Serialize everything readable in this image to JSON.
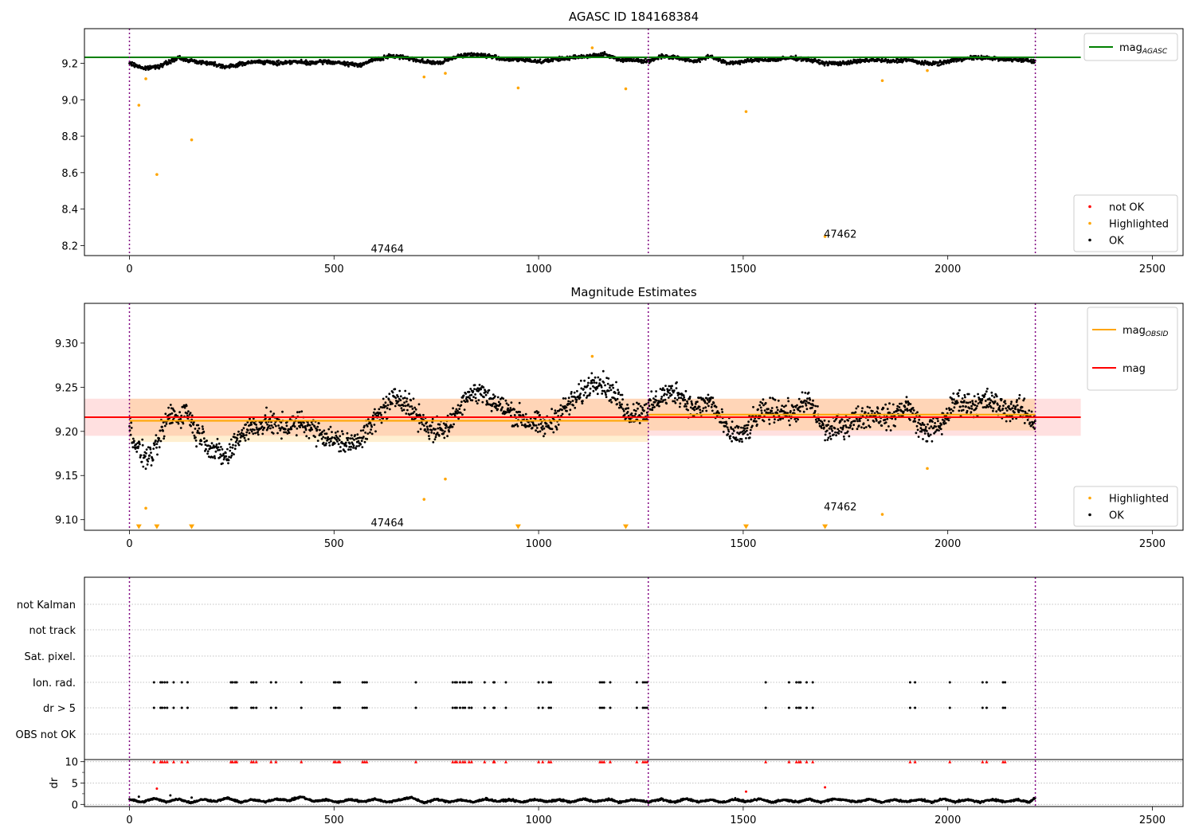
{
  "chart_data": [
    {
      "type": "scatter",
      "title": "AGASC ID 184168384",
      "xlim": [
        -110,
        2575
      ],
      "ylim": [
        8.145,
        9.39
      ],
      "xticks": [
        0,
        500,
        1000,
        1500,
        2000,
        2500
      ],
      "yticks": [
        8.2,
        8.4,
        8.6,
        8.8,
        9.0,
        9.2
      ],
      "ytick_labels": [
        "8.2",
        "8.4",
        "8.6",
        "8.8",
        "9.0",
        "9.2"
      ],
      "hlines": [
        {
          "name": "mag",
          "subscript": "AGASC",
          "y": 9.233,
          "x": [
            -110,
            2325
          ],
          "color": "#008000"
        }
      ],
      "vlines": [
        0,
        1268,
        2214
      ],
      "annotations": [
        {
          "text": "47464",
          "x": 590,
          "y": 8.185
        },
        {
          "text": "47462",
          "x": 1697,
          "y": 8.265
        }
      ],
      "legend_top": {
        "placement": "top-right",
        "entries": [
          {
            "name": "mag",
            "subscript": "AGASC",
            "color": "#008000",
            "kind": "line"
          }
        ]
      },
      "legend_bottom": {
        "placement": "bottom-right",
        "entries": [
          {
            "name": "not OK",
            "color": "#ff0000",
            "kind": "marker"
          },
          {
            "name": "Highlighted",
            "color": "#ffa500",
            "kind": "marker"
          },
          {
            "name": "OK",
            "color": "#000000",
            "kind": "marker"
          }
        ]
      },
      "series": [
        {
          "name": "OK",
          "color": "#000000",
          "kind": "trace",
          "x": [
            0,
            40,
            80,
            120,
            160,
            200,
            240,
            280,
            320,
            360,
            400,
            440,
            480,
            520,
            560,
            600,
            640,
            680,
            720,
            760,
            800,
            840,
            880,
            920,
            960,
            1000,
            1040,
            1080,
            1120,
            1160,
            1200,
            1240,
            1268,
            1300,
            1340,
            1380,
            1420,
            1460,
            1500,
            1540,
            1580,
            1620,
            1660,
            1700,
            1740,
            1780,
            1820,
            1860,
            1900,
            1940,
            1980,
            2020,
            2060,
            2100,
            2140,
            2180,
            2214
          ],
          "y": [
            9.2,
            9.17,
            9.19,
            9.23,
            9.21,
            9.2,
            9.18,
            9.2,
            9.21,
            9.2,
            9.21,
            9.2,
            9.21,
            9.2,
            9.19,
            9.22,
            9.24,
            9.23,
            9.21,
            9.2,
            9.24,
            9.25,
            9.24,
            9.22,
            9.22,
            9.21,
            9.22,
            9.23,
            9.24,
            9.25,
            9.22,
            9.22,
            9.21,
            9.24,
            9.23,
            9.21,
            9.24,
            9.2,
            9.21,
            9.22,
            9.22,
            9.23,
            9.22,
            9.2,
            9.2,
            9.21,
            9.22,
            9.21,
            9.22,
            9.2,
            9.2,
            9.22,
            9.23,
            9.23,
            9.22,
            9.22,
            9.21
          ]
        },
        {
          "name": "Highlighted",
          "color": "#ffa500",
          "kind": "points",
          "x": [
            23,
            40,
            67,
            152,
            720,
            772,
            950,
            1131,
            1213,
            1507,
            1700,
            1840,
            1950
          ],
          "y": [
            8.97,
            9.115,
            8.59,
            8.78,
            9.125,
            9.145,
            9.065,
            9.285,
            9.06,
            8.935,
            8.25,
            9.105,
            9.16
          ]
        }
      ]
    },
    {
      "type": "scatter",
      "title": "Magnitude Estimates",
      "xlim": [
        -110,
        2575
      ],
      "ylim": [
        9.088,
        9.345
      ],
      "xticks": [
        0,
        500,
        1000,
        1500,
        2000,
        2500
      ],
      "yticks": [
        9.1,
        9.15,
        9.2,
        9.25,
        9.3
      ],
      "ytick_labels": [
        "9.10",
        "9.15",
        "9.20",
        "9.25",
        "9.30"
      ],
      "vlines": [
        0,
        1268,
        2214
      ],
      "annotations": [
        {
          "text": "47464",
          "x": 590,
          "y": 9.097
        },
        {
          "text": "47462",
          "x": 1697,
          "y": 9.115
        }
      ],
      "bands": [
        {
          "name": "mag band",
          "x": [
            -110,
            2325
          ],
          "y": [
            9.195,
            9.237
          ],
          "color": "#ff0000",
          "opacity": 0.12
        },
        {
          "name": "obsid 47464 band",
          "x": [
            0,
            1268
          ],
          "y": [
            9.188,
            9.237
          ],
          "color": "#ffa500",
          "opacity": 0.18
        },
        {
          "name": "obsid 47462 band",
          "x": [
            1268,
            2214
          ],
          "y": [
            9.201,
            9.237
          ],
          "color": "#ffa500",
          "opacity": 0.18
        }
      ],
      "hlines": [
        {
          "name": "mag",
          "subscript": "OBSID",
          "y": 9.212,
          "x": [
            0,
            1268
          ],
          "color": "#ffa500"
        },
        {
          "name": "mag",
          "subscript": "OBSID",
          "y": 9.219,
          "x": [
            1268,
            2214
          ],
          "color": "#ffa500"
        },
        {
          "name": "mag",
          "subscript": "",
          "y": 9.216,
          "x": [
            -110,
            2325
          ],
          "color": "#ff0000"
        }
      ],
      "legend_top": {
        "placement": "top-right",
        "entries": [
          {
            "name": "mag",
            "subscript": "OBSID",
            "color": "#ffa500",
            "kind": "line"
          },
          {
            "name": "mag",
            "subscript": "",
            "color": "#ff0000",
            "kind": "line"
          }
        ]
      },
      "legend_bottom": {
        "placement": "bottom-right",
        "entries": [
          {
            "name": "Highlighted",
            "color": "#ffa500",
            "kind": "marker"
          },
          {
            "name": "OK",
            "color": "#000000",
            "kind": "marker"
          }
        ]
      },
      "series": [
        {
          "name": "OK",
          "color": "#000000",
          "kind": "trace",
          "x": [
            0,
            20,
            40,
            60,
            80,
            100,
            120,
            140,
            160,
            180,
            200,
            220,
            240,
            260,
            280,
            300,
            340,
            380,
            420,
            460,
            500,
            540,
            580,
            620,
            660,
            700,
            740,
            780,
            820,
            860,
            900,
            940,
            980,
            1020,
            1060,
            1100,
            1140,
            1180,
            1220,
            1268,
            1300,
            1340,
            1380,
            1420,
            1460,
            1500,
            1540,
            1580,
            1620,
            1660,
            1700,
            1740,
            1780,
            1820,
            1860,
            1900,
            1940,
            1980,
            2020,
            2060,
            2100,
            2140,
            2180,
            2214
          ],
          "y": [
            9.205,
            9.18,
            9.17,
            9.175,
            9.2,
            9.22,
            9.215,
            9.225,
            9.2,
            9.195,
            9.18,
            9.175,
            9.17,
            9.19,
            9.2,
            9.205,
            9.21,
            9.205,
            9.21,
            9.2,
            9.19,
            9.185,
            9.2,
            9.225,
            9.24,
            9.22,
            9.2,
            9.205,
            9.24,
            9.245,
            9.23,
            9.22,
            9.21,
            9.205,
            9.225,
            9.24,
            9.26,
            9.245,
            9.22,
            9.225,
            9.24,
            9.245,
            9.225,
            9.235,
            9.2,
            9.195,
            9.22,
            9.225,
            9.22,
            9.235,
            9.2,
            9.205,
            9.215,
            9.22,
            9.215,
            9.23,
            9.2,
            9.205,
            9.235,
            9.23,
            9.235,
            9.225,
            9.225,
            9.21
          ]
        },
        {
          "name": "Highlighted",
          "color": "#ffa500",
          "kind": "points",
          "x": [
            40,
            720,
            772,
            1131,
            1840,
            1950
          ],
          "y": [
            9.113,
            9.123,
            9.146,
            9.285,
            9.106,
            9.158
          ]
        },
        {
          "name": "Highlighted (below axis)",
          "color": "#ffa500",
          "kind": "down-markers",
          "x": [
            23,
            67,
            152,
            950,
            1213,
            1507,
            1700
          ],
          "y": [
            9.092,
            9.092,
            9.092,
            9.092,
            9.092,
            9.092,
            9.092
          ]
        }
      ]
    },
    {
      "type": "scatter",
      "title": "",
      "xlim": [
        -110,
        2575
      ],
      "vlines": [
        0,
        1268,
        2214
      ],
      "flag_rows": [
        "not Kalman",
        "not track",
        "Sat. pixel.",
        "Ion. rad.",
        "dr > 5",
        "OBS not OK"
      ],
      "flag_points": [
        {
          "row": "Ion. rad.",
          "x": [
            60,
            76,
            80,
            86,
            92,
            108,
            128,
            142,
            248,
            252,
            258,
            262,
            298,
            303,
            310,
            346,
            358,
            420,
            500,
            504,
            510,
            514,
            570,
            575,
            580,
            700,
            790,
            796,
            800,
            808,
            815,
            820,
            830,
            836,
            868,
            890,
            892,
            920,
            1000,
            1010,
            1025,
            1030,
            1150,
            1155,
            1160,
            1175,
            1240,
            1255,
            1260,
            1265,
            1555,
            1612,
            1630,
            1636,
            1640,
            1655,
            1670,
            1908,
            1920,
            2005,
            2085,
            2095,
            2135,
            2140
          ]
        },
        {
          "row": "dr > 5",
          "x": [
            60,
            76,
            80,
            86,
            92,
            108,
            128,
            142,
            248,
            252,
            258,
            262,
            298,
            303,
            310,
            346,
            358,
            420,
            500,
            504,
            510,
            514,
            570,
            575,
            580,
            700,
            790,
            796,
            800,
            808,
            815,
            820,
            830,
            836,
            868,
            890,
            892,
            920,
            1000,
            1010,
            1025,
            1030,
            1150,
            1155,
            1160,
            1175,
            1240,
            1255,
            1260,
            1265,
            1555,
            1612,
            1630,
            1636,
            1640,
            1655,
            1670,
            1908,
            1920,
            2005,
            2085,
            2095,
            2135,
            2140
          ]
        }
      ],
      "dr": {
        "ylabel": "dr",
        "ylim": [
          -0.5,
          10.5
        ],
        "yticks": [
          0,
          5,
          10
        ],
        "ytick_labels": [
          "0",
          "5",
          "10"
        ],
        "threshold": 10,
        "trace": {
          "x": [
            0,
            30,
            60,
            90,
            120,
            150,
            180,
            210,
            240,
            270,
            300,
            330,
            360,
            390,
            420,
            450,
            480,
            510,
            540,
            570,
            600,
            630,
            660,
            690,
            720,
            750,
            780,
            810,
            840,
            870,
            900,
            930,
            960,
            990,
            1020,
            1050,
            1080,
            1110,
            1140,
            1170,
            1200,
            1230,
            1268,
            1300,
            1330,
            1360,
            1390,
            1420,
            1450,
            1480,
            1510,
            1540,
            1570,
            1600,
            1630,
            1660,
            1690,
            1720,
            1750,
            1780,
            1810,
            1840,
            1870,
            1900,
            1930,
            1960,
            1990,
            2020,
            2050,
            2080,
            2110,
            2140,
            2170,
            2200,
            2214
          ],
          "y": [
            1.2,
            0.5,
            1.4,
            0.6,
            1.3,
            0.4,
            1.2,
            0.7,
            1.5,
            0.5,
            1.1,
            0.6,
            1.3,
            0.9,
            1.8,
            0.7,
            1.1,
            0.5,
            1.2,
            0.6,
            1.3,
            0.5,
            1.1,
            1.6,
            0.4,
            1.2,
            0.6,
            1.1,
            0.5,
            1.3,
            0.7,
            1.1,
            0.5,
            1.2,
            0.6,
            1.1,
            0.5,
            1.3,
            0.6,
            1.2,
            0.5,
            1.1,
            0.6,
            1.2,
            0.5,
            1.3,
            0.6,
            1.1,
            0.5,
            1.2,
            0.6,
            1.3,
            0.5,
            1.1,
            0.6,
            1.2,
            0.5,
            1.3,
            1.0,
            0.6,
            1.2,
            0.5,
            1.1,
            0.6,
            1.2,
            0.5,
            1.3,
            0.6,
            1.1,
            0.5,
            1.2,
            0.6,
            1.1,
            0.5,
            1.6
          ]
        },
        "over_threshold_x": [
          60,
          76,
          80,
          86,
          92,
          108,
          128,
          142,
          248,
          252,
          258,
          262,
          298,
          303,
          310,
          346,
          358,
          420,
          500,
          504,
          510,
          514,
          570,
          575,
          580,
          700,
          790,
          796,
          800,
          808,
          815,
          820,
          830,
          836,
          868,
          890,
          892,
          920,
          1000,
          1010,
          1025,
          1030,
          1150,
          1155,
          1160,
          1175,
          1240,
          1255,
          1260,
          1265,
          1555,
          1612,
          1630,
          1636,
          1640,
          1655,
          1670,
          1908,
          1920,
          2005,
          2085,
          2095,
          2135,
          2140
        ],
        "red_points": [
          {
            "x": 67,
            "y": 3.7
          },
          {
            "x": 1507,
            "y": 3.0
          },
          {
            "x": 1700,
            "y": 4.0
          }
        ],
        "black_points": [
          {
            "x": 23,
            "y": 1.8
          },
          {
            "x": 100,
            "y": 2.1
          },
          {
            "x": 152,
            "y": 1.6
          }
        ]
      }
    }
  ]
}
